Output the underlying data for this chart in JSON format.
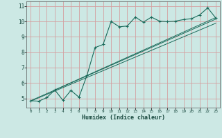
{
  "title": "",
  "xlabel": "Humidex (Indice chaleur)",
  "bg_color": "#cce8e4",
  "grid_color": "#d4a0a0",
  "line_color": "#1a6a5a",
  "xlim": [
    -0.5,
    23.5
  ],
  "ylim": [
    4.4,
    11.3
  ],
  "x_ticks": [
    0,
    1,
    2,
    3,
    4,
    5,
    6,
    7,
    8,
    9,
    10,
    11,
    12,
    13,
    14,
    15,
    16,
    17,
    18,
    19,
    20,
    21,
    22,
    23
  ],
  "y_ticks": [
    5,
    6,
    7,
    8,
    9,
    10,
    11
  ],
  "jagged_x": [
    0,
    1,
    2,
    3,
    4,
    5,
    6,
    7,
    8,
    9,
    10,
    11,
    12,
    13,
    14,
    15,
    16,
    17,
    18,
    19,
    20,
    21,
    22,
    23
  ],
  "jagged_y": [
    4.85,
    4.82,
    5.05,
    5.55,
    4.88,
    5.52,
    5.08,
    6.5,
    8.3,
    8.5,
    10.0,
    9.65,
    9.7,
    10.28,
    9.95,
    10.28,
    10.02,
    9.98,
    10.02,
    10.12,
    10.18,
    10.42,
    10.88,
    10.22
  ],
  "line1_x": [
    0,
    23
  ],
  "line1_y": [
    4.85,
    10.15
  ],
  "line2_x": [
    0,
    23
  ],
  "line2_y": [
    4.82,
    9.88
  ],
  "line3_x": [
    3,
    23
  ],
  "line3_y": [
    5.55,
    10.25
  ]
}
